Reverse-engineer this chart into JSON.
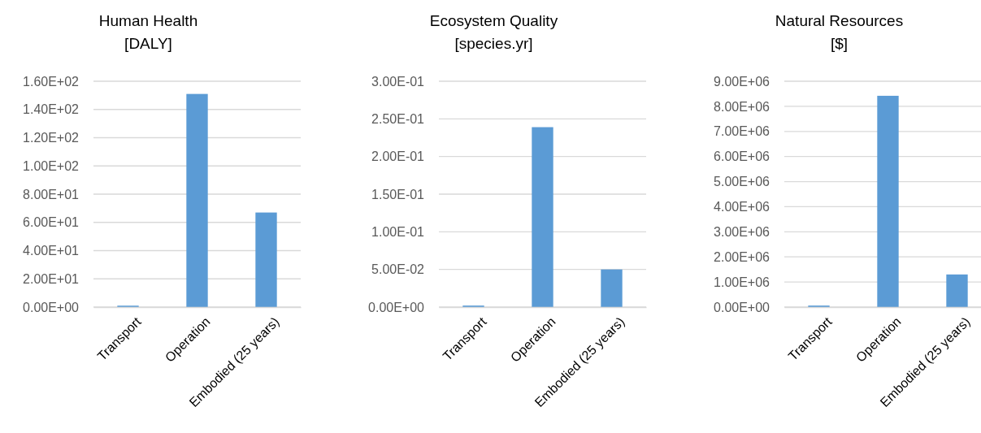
{
  "chart_data": [
    {
      "type": "bar",
      "title": "Human Health",
      "subtitle": "[DALY]",
      "categories": [
        "Transport",
        "Operation",
        "Embodied (25 years)"
      ],
      "values": [
        1,
        151,
        67
      ],
      "color": "#5b9bd5",
      "ylim": [
        0,
        160
      ],
      "yticks": [
        {
          "value": 0,
          "label": "0.00E+00"
        },
        {
          "value": 20,
          "label": "2.00E+01"
        },
        {
          "value": 40,
          "label": "4.00E+01"
        },
        {
          "value": 60,
          "label": "6.00E+01"
        },
        {
          "value": 80,
          "label": "8.00E+01"
        },
        {
          "value": 100,
          "label": "1.00E+02"
        },
        {
          "value": 120,
          "label": "1.20E+02"
        },
        {
          "value": 140,
          "label": "1.40E+02"
        },
        {
          "value": 160,
          "label": "1.60E+02"
        }
      ],
      "grid": "y"
    },
    {
      "type": "bar",
      "title": "Ecosystem Quality",
      "subtitle": "[species.yr]",
      "categories": [
        "Transport",
        "Operation",
        "Embodied (25 years)"
      ],
      "values": [
        0.002,
        0.239,
        0.05
      ],
      "color": "#5b9bd5",
      "ylim": [
        0,
        0.3
      ],
      "yticks": [
        {
          "value": 0,
          "label": "0.00E+00"
        },
        {
          "value": 0.05,
          "label": "5.00E-02"
        },
        {
          "value": 0.1,
          "label": "1.00E-01"
        },
        {
          "value": 0.15,
          "label": "1.50E-01"
        },
        {
          "value": 0.2,
          "label": "2.00E-01"
        },
        {
          "value": 0.25,
          "label": "2.50E-01"
        },
        {
          "value": 0.3,
          "label": "3.00E-01"
        }
      ],
      "grid": "y"
    },
    {
      "type": "bar",
      "title": "Natural Resources",
      "subtitle": "[$]",
      "categories": [
        "Transport",
        "Operation",
        "Embodied (25 years)"
      ],
      "values": [
        60000,
        8420000,
        1300000
      ],
      "color": "#5b9bd5",
      "ylim": [
        0,
        9000000
      ],
      "yticks": [
        {
          "value": 0,
          "label": "0.00E+00"
        },
        {
          "value": 1000000,
          "label": "1.00E+06"
        },
        {
          "value": 2000000,
          "label": "2.00E+06"
        },
        {
          "value": 3000000,
          "label": "3.00E+06"
        },
        {
          "value": 4000000,
          "label": "4.00E+06"
        },
        {
          "value": 5000000,
          "label": "5.00E+06"
        },
        {
          "value": 6000000,
          "label": "6.00E+06"
        },
        {
          "value": 7000000,
          "label": "7.00E+06"
        },
        {
          "value": 8000000,
          "label": "8.00E+06"
        },
        {
          "value": 9000000,
          "label": "9.00E+06"
        }
      ],
      "grid": "y"
    }
  ]
}
